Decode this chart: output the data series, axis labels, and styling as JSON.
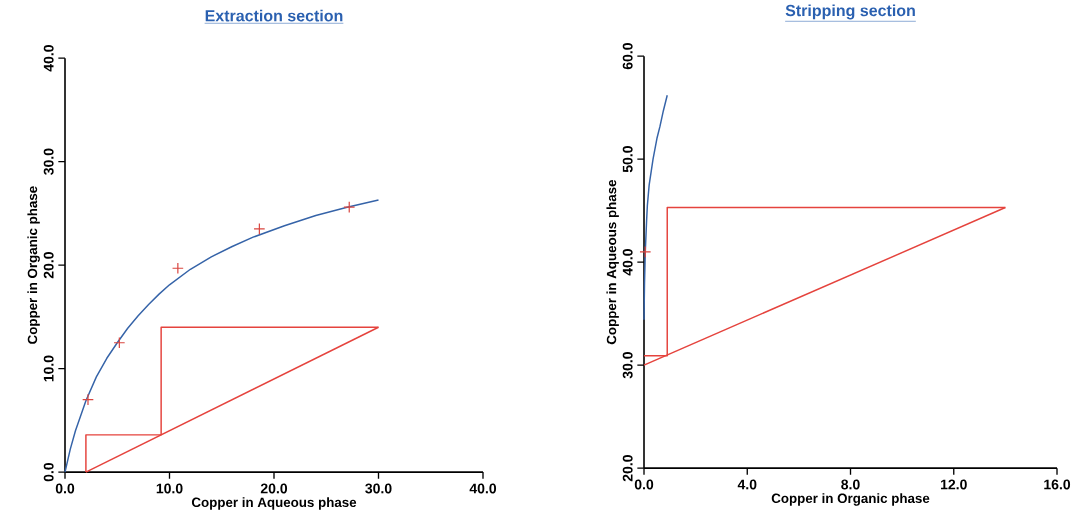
{
  "chart_data": [
    {
      "type": "line",
      "title": "Extraction section",
      "xlabel": "Copper in Aqueous phase",
      "ylabel": "Copper in Organic phase",
      "xlim": [
        0,
        40
      ],
      "ylim": [
        0,
        40
      ],
      "xticks": [
        {
          "value": 0,
          "label": "0.0"
        },
        {
          "value": 10,
          "label": "10.0"
        },
        {
          "value": 20,
          "label": "20.0"
        },
        {
          "value": 30,
          "label": "30.0"
        },
        {
          "value": 40,
          "label": "40.0"
        }
      ],
      "yticks": [
        {
          "value": 0,
          "label": "0.0"
        },
        {
          "value": 10,
          "label": "10.0"
        },
        {
          "value": 20,
          "label": "20.0"
        },
        {
          "value": 30,
          "label": "30.0"
        },
        {
          "value": 40,
          "label": "40.0"
        }
      ],
      "series": [
        {
          "color": "#3563a8",
          "x": [
            0,
            0.5,
            1,
            2,
            3,
            4,
            5,
            6,
            7,
            8,
            9,
            10,
            12,
            14,
            16,
            18,
            21,
            24,
            27,
            30
          ],
          "values": [
            0,
            2.2,
            4.0,
            6.9,
            9.2,
            11.0,
            12.5,
            13.9,
            15.1,
            16.2,
            17.2,
            18.1,
            19.6,
            20.8,
            21.8,
            22.7,
            23.8,
            24.8,
            25.6,
            26.3
          ]
        },
        {
          "type": "scatter",
          "marker": "cross",
          "color": "#d9453f",
          "x": [
            2.2,
            5.2,
            10.8,
            18.6,
            27.2
          ],
          "values": [
            7.0,
            12.5,
            19.7,
            23.5,
            25.6
          ]
        },
        {
          "color": "#e5433d",
          "x": [
            2.0,
            30.0
          ],
          "values": [
            0,
            14.0
          ]
        },
        {
          "color": "#e5433d",
          "x": [
            30.0,
            9.2,
            9.2,
            2.0,
            2.0
          ],
          "values": [
            14.0,
            14.0,
            3.6,
            3.6,
            0
          ]
        }
      ]
    },
    {
      "type": "line",
      "title": "Stripping section",
      "xlabel": "Copper in Organic phase",
      "ylabel": "Copper in Aqueous phase",
      "xlim": [
        0,
        16
      ],
      "ylim": [
        20,
        60
      ],
      "xticks": [
        {
          "value": 0,
          "label": "0.0"
        },
        {
          "value": 4,
          "label": "4.0"
        },
        {
          "value": 8,
          "label": "8.0"
        },
        {
          "value": 12,
          "label": "12.0"
        },
        {
          "value": 16,
          "label": "16.0"
        }
      ],
      "yticks": [
        {
          "value": 20,
          "label": "20.0"
        },
        {
          "value": 30,
          "label": "30.0"
        },
        {
          "value": 40,
          "label": "40.0"
        },
        {
          "value": 50,
          "label": "50.0"
        },
        {
          "value": 60,
          "label": "60.0"
        }
      ],
      "series": [
        {
          "color": "#3563a8",
          "x": [
            0,
            0.02,
            0.05,
            0.1,
            0.13,
            0.2,
            0.35,
            0.5,
            0.62,
            0.75,
            0.9
          ],
          "values": [
            34.4,
            38.0,
            41.0,
            44.0,
            45.5,
            47.5,
            50.0,
            52.0,
            53.2,
            54.7,
            56.2
          ]
        },
        {
          "type": "scatter",
          "marker": "cross",
          "color": "#d9453f",
          "x": [
            0.05
          ],
          "values": [
            41.0
          ]
        },
        {
          "color": "#e5433d",
          "x": [
            0,
            14.0
          ],
          "values": [
            30.0,
            45.3
          ]
        },
        {
          "color": "#e5433d",
          "x": [
            14.0,
            0.9,
            0.9,
            0
          ],
          "values": [
            45.3,
            45.3,
            30.9,
            30.9
          ]
        }
      ]
    }
  ]
}
